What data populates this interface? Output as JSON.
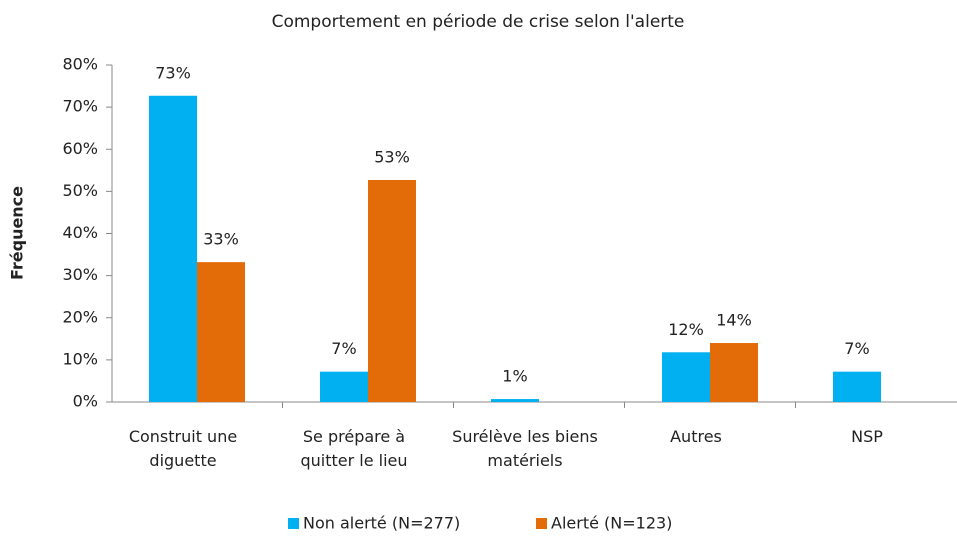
{
  "chart_data": {
    "type": "bar",
    "title": "Comportement en période de crise selon l'alerte",
    "ylabel": "Fréquence",
    "categories": [
      "Construit une diguette",
      "Se prépare à quitter le lieu",
      "Surélève les biens matériels",
      "Autres",
      "NSP"
    ],
    "series": [
      {
        "name": "Non alerté (N=277)",
        "color": "#00b0f0",
        "values": [
          72.7,
          7.2,
          0.7,
          11.8,
          7.2
        ],
        "value_labels": [
          "73%",
          "7%",
          "1%",
          "12%",
          "7%"
        ]
      },
      {
        "name": "Alerté (N=123)",
        "color": "#e36c09",
        "values": [
          33.2,
          52.7,
          null,
          14,
          null
        ],
        "value_labels": [
          "33%",
          "53%",
          null,
          "14%",
          null
        ]
      }
    ],
    "ylim": [
      0,
      80
    ],
    "yticks": [
      {
        "value": 0,
        "label": "0%"
      },
      {
        "value": 10,
        "label": "10%"
      },
      {
        "value": 20,
        "label": "20%"
      },
      {
        "value": 30,
        "label": "30%"
      },
      {
        "value": 40,
        "label": "40%"
      },
      {
        "value": 50,
        "label": "50%"
      },
      {
        "value": 60,
        "label": "60%"
      },
      {
        "value": 70,
        "label": "70%"
      },
      {
        "value": 80,
        "label": "80%"
      }
    ],
    "legend": "bottom"
  }
}
